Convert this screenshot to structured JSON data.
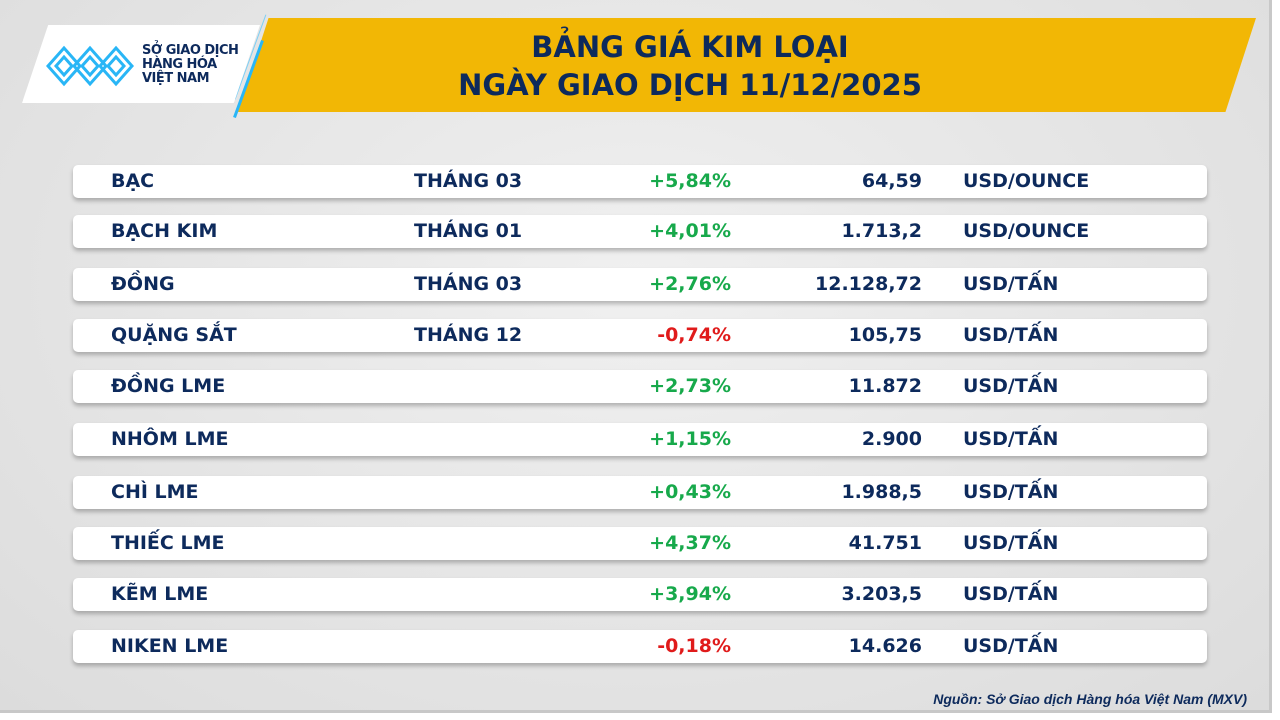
{
  "logo": {
    "lines": [
      "SỞ GIAO DỊCH",
      "HÀNG HÓA",
      "VIỆT NAM"
    ]
  },
  "header": {
    "title_line1": "BẢNG GIÁ KIM LOẠI",
    "title_line2": "NGÀY GIAO DỊCH 11/12/2025"
  },
  "colors": {
    "accent": "#f2b705",
    "navy": "#0d2a5c",
    "up": "#17a94b",
    "down": "#e01b1b",
    "logo_blue": "#29b6f6"
  },
  "rows": [
    {
      "name": "BẠC",
      "month": "THÁNG 03",
      "change": "+5,84%",
      "price": "64,59",
      "unit": "USD/OUNCE",
      "dir": "up"
    },
    {
      "name": "BẠCH KIM",
      "month": "THÁNG 01",
      "change": "+4,01%",
      "price": "1.713,2",
      "unit": "USD/OUNCE",
      "dir": "up"
    },
    {
      "name": "ĐỒNG",
      "month": "THÁNG 03",
      "change": "+2,76%",
      "price": "12.128,72",
      "unit": "USD/TẤN",
      "dir": "up"
    },
    {
      "name": "QUẶNG SẮT",
      "month": "THÁNG 12",
      "change": "-0,74%",
      "price": "105,75",
      "unit": "USD/TẤN",
      "dir": "down"
    },
    {
      "name": "ĐỒNG LME",
      "month": "",
      "change": "+2,73%",
      "price": "11.872",
      "unit": "USD/TẤN",
      "dir": "up"
    },
    {
      "name": "NHÔM LME",
      "month": "",
      "change": "+1,15%",
      "price": "2.900",
      "unit": "USD/TẤN",
      "dir": "up"
    },
    {
      "name": "CHÌ LME",
      "month": "",
      "change": "+0,43%",
      "price": "1.988,5",
      "unit": "USD/TẤN",
      "dir": "up"
    },
    {
      "name": "THIẾC LME",
      "month": "",
      "change": "+4,37%",
      "price": "41.751",
      "unit": "USD/TẤN",
      "dir": "up"
    },
    {
      "name": "KẼM LME",
      "month": "",
      "change": "+3,94%",
      "price": "3.203,5",
      "unit": "USD/TẤN",
      "dir": "up"
    },
    {
      "name": "NIKEN LME",
      "month": "",
      "change": "-0,18%",
      "price": "14.626",
      "unit": "USD/TẤN",
      "dir": "down"
    }
  ],
  "footer": {
    "source": "Nguồn: Sở Giao dịch Hàng hóa Việt Nam (MXV)"
  }
}
